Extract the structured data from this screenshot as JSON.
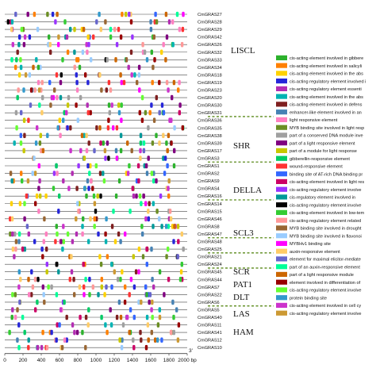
{
  "genes": [
    "CmGRAS27",
    "CmGRAS28",
    "CmGRAS29",
    "CmGRAS42",
    "CmGRAS26",
    "CmGRAS32",
    "CmGRAS33",
    "CmGRAS34",
    "CmGRAS18",
    "CmGRAS19",
    "CmGRAS23",
    "CmGRAS20",
    "CmGRAS30",
    "CmGRAS31",
    "CmGRAS36",
    "CmGRAS35",
    "CmGRAS38",
    "CmGRAS39",
    "CmGRAS17",
    "CmGRAS3",
    "CmGRAS1",
    "CmGRAS2",
    "CmGRAS9",
    "CmGRAS4",
    "CmGRAS16",
    "CmGRAS14",
    "CmGRAS15",
    "CmGRAS46",
    "CmGRAS8",
    "CmGRAS47",
    "CmGRAS48",
    "CmGRAS25",
    "CmGRAS21",
    "CmGRAS24",
    "CmGRAS45",
    "CmGRAS44",
    "CmGRAS7",
    "CmGRAS22",
    "CmGRAS6",
    "CmGRAS5",
    "CmGRAS40",
    "CmGRAS11",
    "CmGRAS41",
    "CmGRAS12",
    "CmGRAS10"
  ],
  "groups": [
    "LISCL",
    "SHR",
    "DELLA",
    "SCL3",
    "SCR",
    "DLT",
    "LAS",
    "PAT1",
    "HAM"
  ],
  "axis": {
    "ticks": [
      "0",
      "200",
      "400",
      "600",
      "800",
      "1000",
      "1200",
      "1400",
      "1600",
      "1800",
      "2000 bp"
    ],
    "end_label": "3'"
  },
  "legend": [
    {
      "label": "cis-acting element involved in gibbere",
      "color": "#2db22d"
    },
    {
      "label": "cis-acting element involved in salicyli",
      "color": "#ff8000"
    },
    {
      "label": "cis-acting element involved in the abs",
      "color": "#ffd200"
    },
    {
      "label": "cis-acting regulatory element involved i",
      "color": "#2626d9"
    },
    {
      "label": "cis-acting regulatory element essenti",
      "color": "#b32db3"
    },
    {
      "label": "cis-acting element involved in the abs",
      "color": "#00b3b3"
    },
    {
      "label": "cis-acting element involved in defens",
      "color": "#7f2020"
    },
    {
      "label": "enhancer-like element involved in an",
      "color": "#4682b4"
    },
    {
      "label": "light responsive element",
      "color": "#ff80c0"
    },
    {
      "label": "MYB binding site involved in light resp",
      "color": "#6b8e23"
    },
    {
      "label": "part of a conserved DNA module inve",
      "color": "#a0a0a0"
    },
    {
      "label": "part of a light responsive element",
      "color": "#800080"
    },
    {
      "label": "part of a module for light response",
      "color": "#c8c800"
    },
    {
      "label": "gibberellin-responsive element",
      "color": "#00cc66"
    },
    {
      "label": "wound-responsive element",
      "color": "#ff3333"
    },
    {
      "label": "binding site of AT-rich DNA binding pr",
      "color": "#3366ff"
    },
    {
      "label": "cis-acting element involved in light res",
      "color": "#cc0066"
    },
    {
      "label": "cis-acting regulatory element involve",
      "color": "#9933ff"
    },
    {
      "label": "cis-regulatory element involved in",
      "color": "#009999"
    },
    {
      "label": "cis-acting regulatory element involve",
      "color": "#000000"
    },
    {
      "label": "cis-acting element involved in low-tem",
      "color": "#33cc33"
    },
    {
      "label": "cis-acting regulatory element related",
      "color": "#ff9999"
    },
    {
      "label": "MYB binding site involved in drought",
      "color": "#996633"
    },
    {
      "label": "MYB binding site involved in flavonoi",
      "color": "#99ccff"
    },
    {
      "label": "MYBHv1 binding site",
      "color": "#ff00ff"
    },
    {
      "label": "auxin-responsive element",
      "color": "#ffcc66"
    },
    {
      "label": "element for maximal elicitor-mediate",
      "color": "#6666cc"
    },
    {
      "label": "part of an auxin-responsive element",
      "color": "#00ff99"
    },
    {
      "label": "part of a light responsive module",
      "color": "#cc6600"
    },
    {
      "label": "element involved in differentiation of",
      "color": "#990000"
    },
    {
      "label": "cis-acting regulatory element involve",
      "color": "#66ff33"
    },
    {
      "label": "protein binding site",
      "color": "#3399cc"
    },
    {
      "label": "cis-acting element involved in cell cy",
      "color": "#cc33cc"
    },
    {
      "label": "cis-acting regulatory element involve",
      "color": "#cc9933"
    }
  ]
}
